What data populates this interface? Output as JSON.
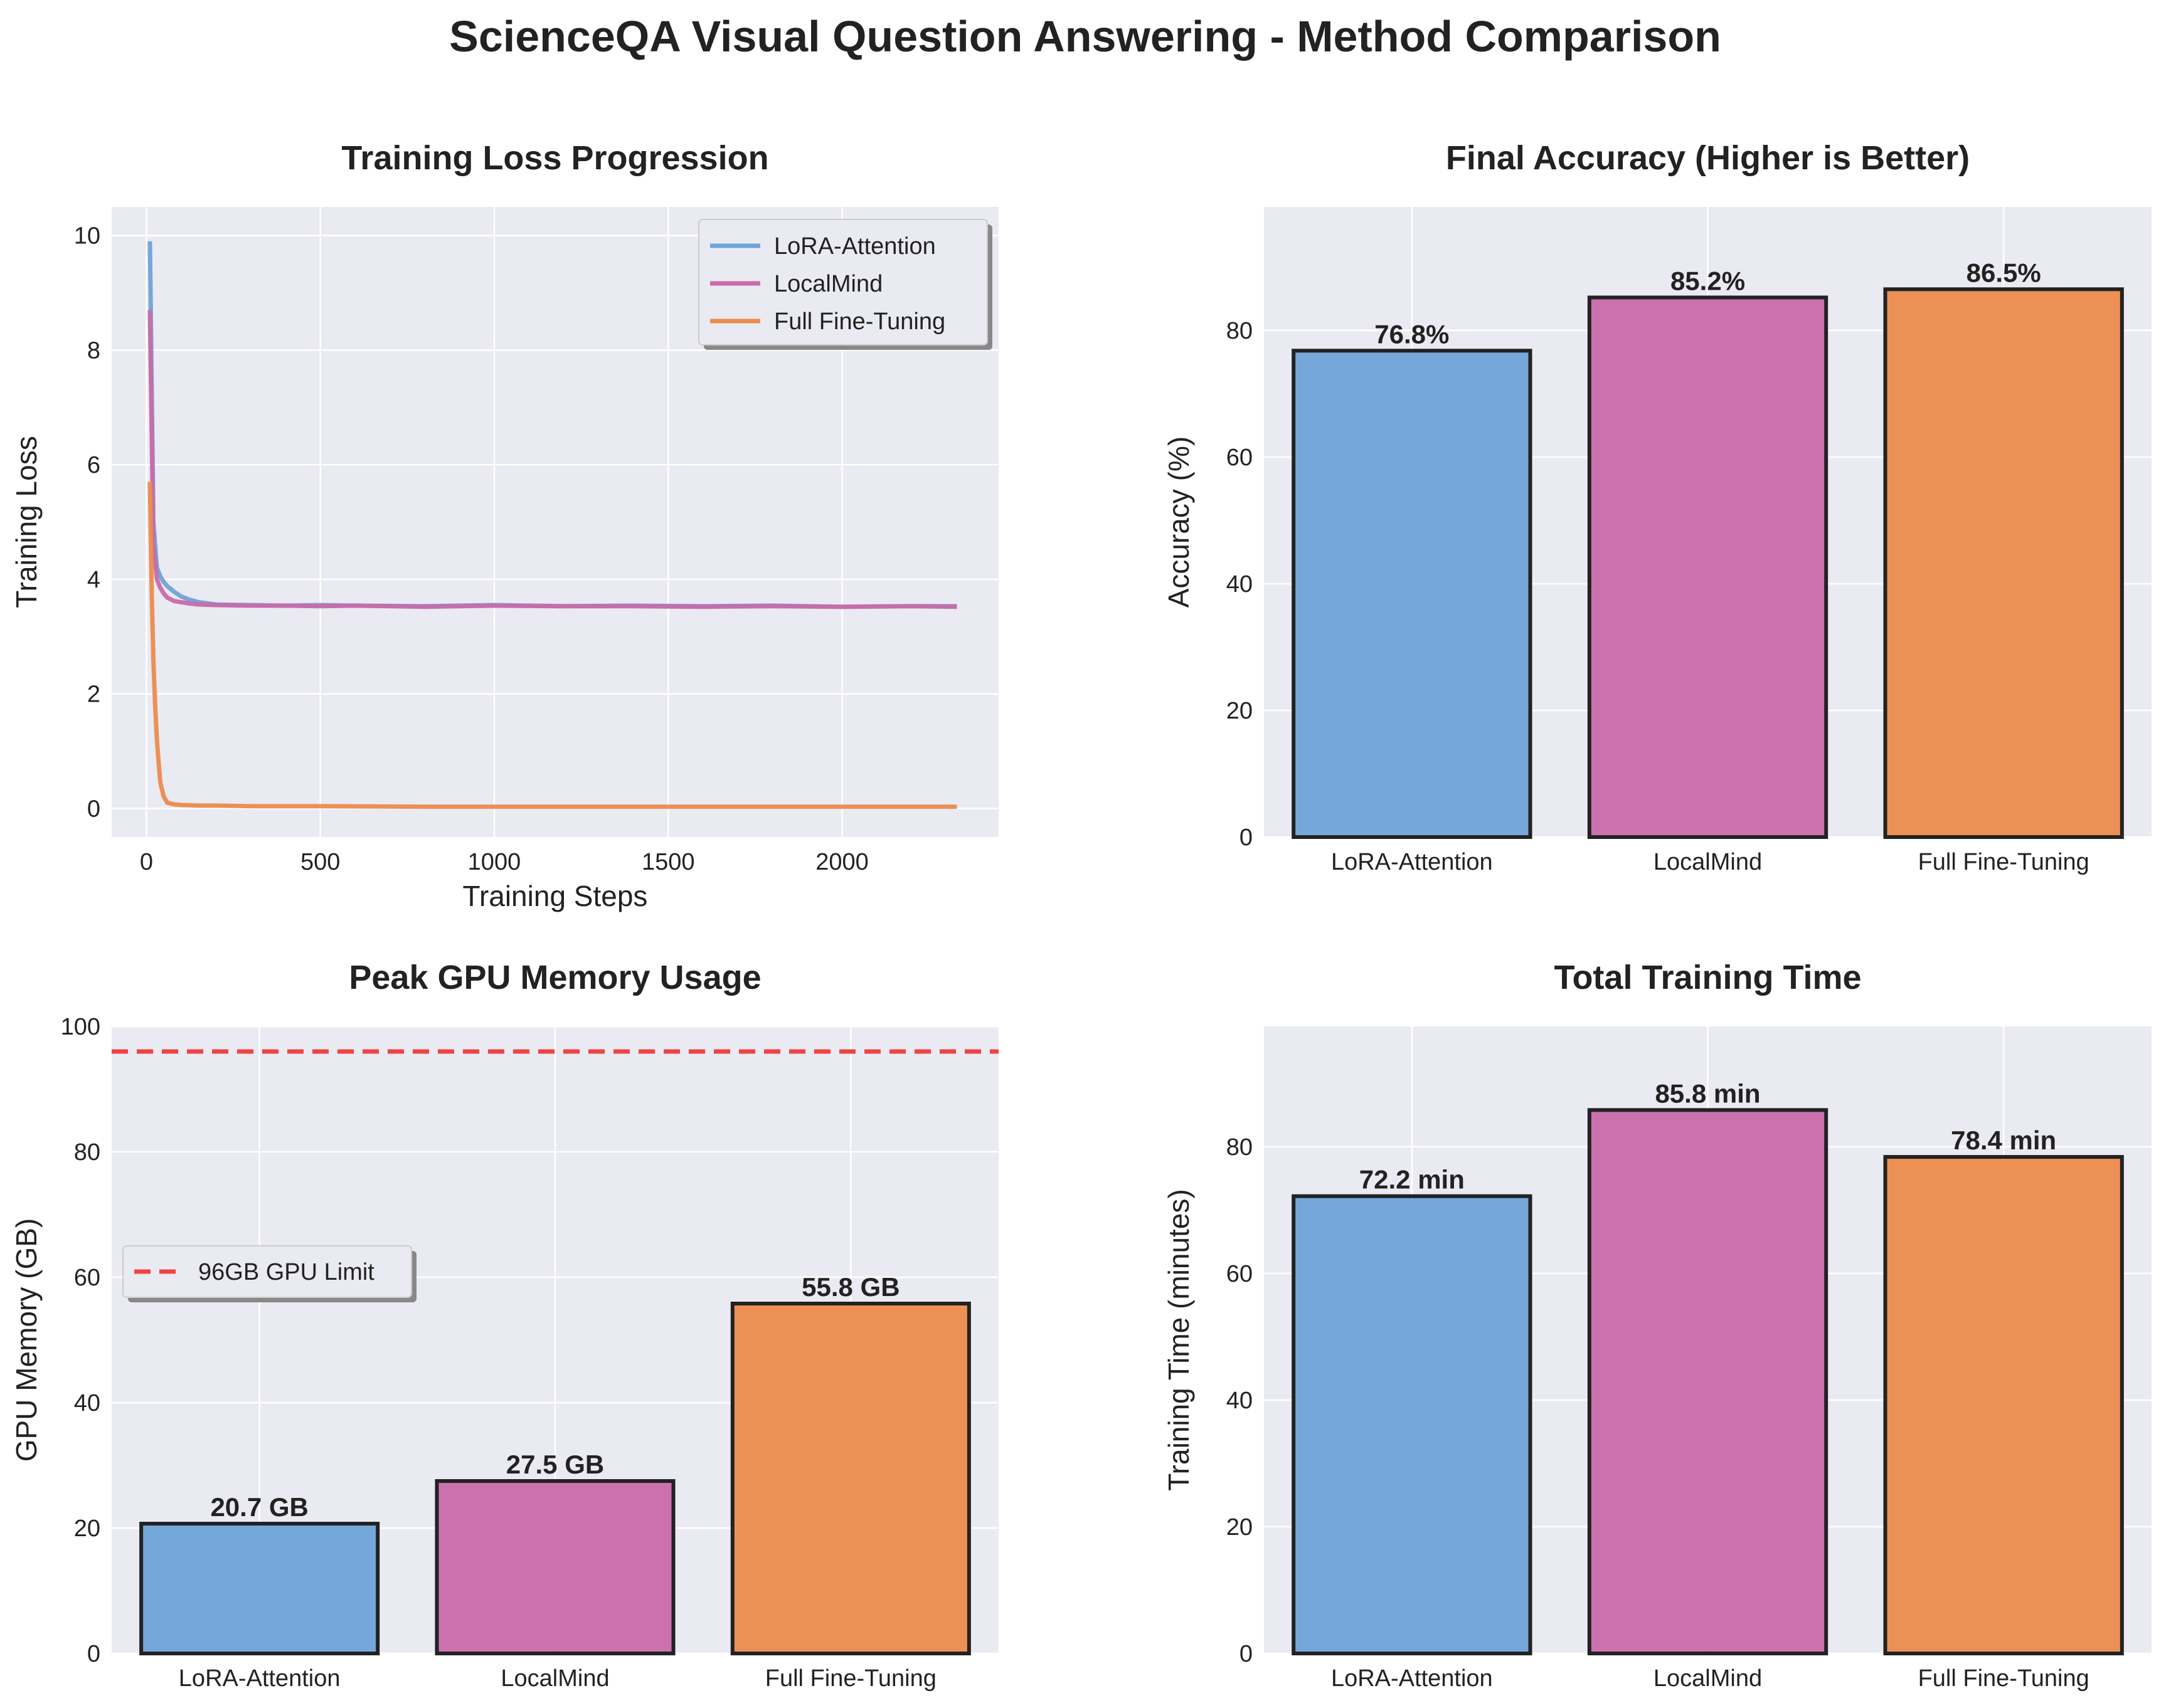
{
  "title": "ScienceQA Visual Question Answering - Method Comparison",
  "colors": {
    "LoRA-Attention": "#6fa3d8",
    "LocalMind": "#c96aa9",
    "Full Fine-Tuning": "#ec8b4c",
    "limit": "#ee4444",
    "plot_bg": "#eaeaf2",
    "grid": "#ffffff",
    "edge": "#222222"
  },
  "chart_data": [
    {
      "id": "loss",
      "type": "line",
      "title": "Training Loss Progression",
      "xlabel": "Training Steps",
      "ylabel": "Training Loss",
      "xlim": [
        -100,
        2450
      ],
      "ylim": [
        -0.5,
        10.5
      ],
      "xticks": [
        0,
        500,
        1000,
        1500,
        2000
      ],
      "yticks": [
        0,
        2,
        4,
        6,
        8,
        10
      ],
      "grid": true,
      "legend": "top-right",
      "series": [
        {
          "name": "LoRA-Attention",
          "x": [
            10,
            20,
            30,
            40,
            50,
            60,
            80,
            100,
            120,
            150,
            200,
            300,
            400,
            500,
            600,
            800,
            1000,
            1200,
            1400,
            1600,
            1800,
            2000,
            2200,
            2330
          ],
          "y": [
            9.9,
            5.0,
            4.2,
            4.05,
            3.95,
            3.88,
            3.78,
            3.7,
            3.65,
            3.6,
            3.56,
            3.55,
            3.54,
            3.55,
            3.54,
            3.53,
            3.55,
            3.53,
            3.54,
            3.53,
            3.54,
            3.52,
            3.53,
            3.53
          ]
        },
        {
          "name": "LocalMind",
          "x": [
            10,
            20,
            30,
            40,
            50,
            60,
            80,
            100,
            120,
            150,
            200,
            300,
            400,
            500,
            600,
            800,
            1000,
            1200,
            1400,
            1600,
            1800,
            2000,
            2200,
            2330
          ],
          "y": [
            8.7,
            4.6,
            4.0,
            3.85,
            3.75,
            3.68,
            3.62,
            3.6,
            3.58,
            3.56,
            3.55,
            3.54,
            3.54,
            3.53,
            3.54,
            3.52,
            3.54,
            3.53,
            3.53,
            3.52,
            3.53,
            3.52,
            3.53,
            3.52
          ]
        },
        {
          "name": "Full Fine-Tuning",
          "x": [
            10,
            15,
            20,
            25,
            30,
            35,
            40,
            50,
            60,
            80,
            100,
            150,
            200,
            300,
            500,
            800,
            1000,
            1500,
            2000,
            2330
          ],
          "y": [
            5.7,
            3.8,
            2.6,
            1.8,
            1.2,
            0.8,
            0.45,
            0.2,
            0.1,
            0.07,
            0.06,
            0.05,
            0.05,
            0.04,
            0.04,
            0.03,
            0.03,
            0.03,
            0.03,
            0.03
          ]
        }
      ]
    },
    {
      "id": "acc",
      "type": "bar",
      "title": "Final Accuracy (Higher is Better)",
      "xlabel": "",
      "ylabel": "Accuracy (%)",
      "ylim": [
        0,
        99.5
      ],
      "yticks": [
        0,
        20,
        40,
        60,
        80
      ],
      "categories": [
        "LoRA-Attention",
        "LocalMind",
        "Full Fine-Tuning"
      ],
      "values": [
        76.8,
        85.2,
        86.5
      ],
      "value_labels": [
        "76.8%",
        "85.2%",
        "86.5%"
      ],
      "grid": true
    },
    {
      "id": "mem",
      "type": "bar",
      "title": "Peak GPU Memory Usage",
      "xlabel": "",
      "ylabel": "GPU Memory (GB)",
      "ylim": [
        0,
        100
      ],
      "yticks": [
        0,
        20,
        40,
        60,
        80,
        100
      ],
      "categories": [
        "LoRA-Attention",
        "LocalMind",
        "Full Fine-Tuning"
      ],
      "values": [
        20.7,
        27.5,
        55.8
      ],
      "value_labels": [
        "20.7 GB",
        "27.5 GB",
        "55.8 GB"
      ],
      "reference_line": {
        "value": 96,
        "label": "96GB GPU Limit"
      },
      "legend": "center-left",
      "grid": true
    },
    {
      "id": "time",
      "type": "bar",
      "title": "Total Training Time",
      "xlabel": "",
      "ylabel": "Training Time (minutes)",
      "ylim": [
        0,
        99
      ],
      "yticks": [
        0,
        20,
        40,
        60,
        80
      ],
      "categories": [
        "LoRA-Attention",
        "LocalMind",
        "Full Fine-Tuning"
      ],
      "values": [
        72.2,
        85.8,
        78.4
      ],
      "value_labels": [
        "72.2 min",
        "85.8 min",
        "78.4 min"
      ],
      "grid": true
    }
  ]
}
